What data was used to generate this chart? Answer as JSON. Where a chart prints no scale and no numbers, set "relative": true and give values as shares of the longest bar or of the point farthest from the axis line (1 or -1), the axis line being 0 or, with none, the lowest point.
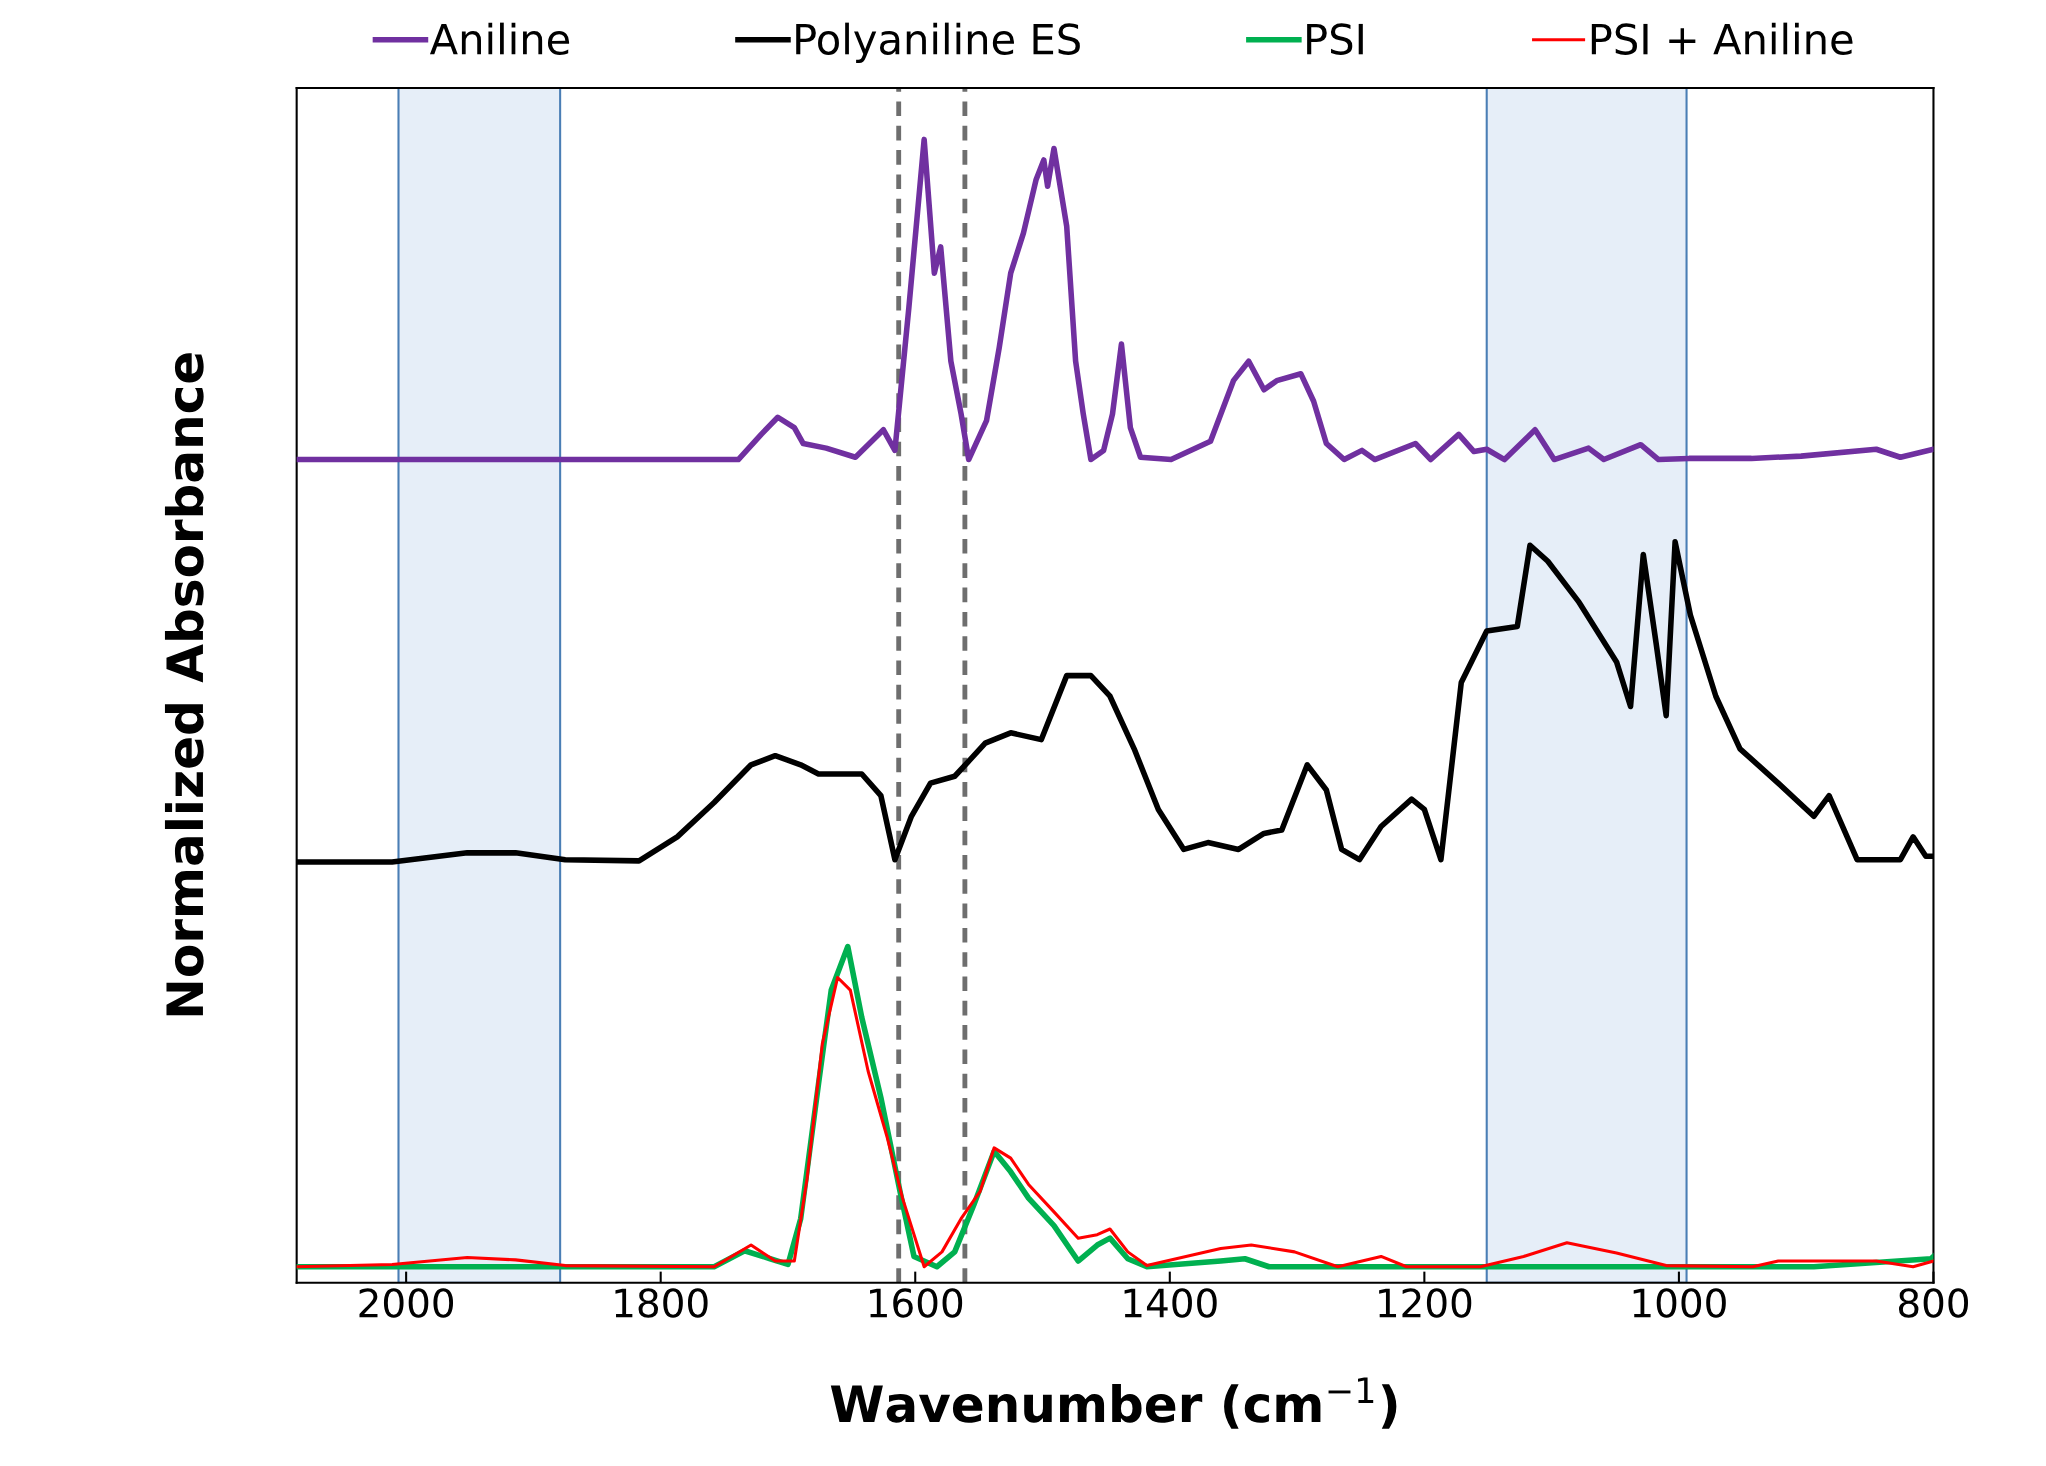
{
  "chart_data": {
    "type": "line",
    "relative": true,
    "xlabel": "Wavenumber (cm$^{−1}$)",
    "ylabel": "Normalized Absorbance",
    "xlim": [
      2086,
      800
    ],
    "xticks": [
      2000,
      1800,
      1600,
      1400,
      1200,
      1000,
      800
    ],
    "tick_labels": "x",
    "grid": false,
    "legend": "top",
    "line_style": "solid",
    "marker": "none",
    "bands": [
      {
        "axis": "x",
        "from": 2006,
        "to": 1879,
        "color": "#e6eef8"
      },
      {
        "axis": "x",
        "from": 1151,
        "to": 994,
        "color": "#e6eef8"
      }
    ],
    "ref_lines": [
      {
        "axis": "x",
        "value": 1613,
        "color": "#6e6e6e",
        "line_style": "dashed"
      },
      {
        "axis": "x",
        "value": 1561,
        "color": "#6e6e6e",
        "line_style": "dashed"
      }
    ],
    "series": [
      {
        "name": "Aniline",
        "color": "#7030a0",
        "x": [
          2086,
          1739,
          1721,
          1708,
          1695,
          1688,
          1670,
          1647,
          1625,
          1616,
          1605,
          1593,
          1585,
          1580,
          1572,
          1564,
          1558,
          1544,
          1534,
          1525,
          1515,
          1505,
          1499,
          1496,
          1491,
          1481,
          1474,
          1468,
          1462,
          1452,
          1445,
          1438,
          1431,
          1423,
          1399,
          1368,
          1350,
          1338,
          1326,
          1316,
          1297,
          1287,
          1277,
          1263,
          1249,
          1239,
          1207,
          1195,
          1173,
          1161,
          1151,
          1137,
          1113,
          1098,
          1071,
          1059,
          1030,
          1016,
          992,
          943,
          904,
          845,
          826,
          800
        ],
        "values": [
          0.72,
          0.72,
          0.742,
          0.757,
          0.748,
          0.734,
          0.73,
          0.722,
          0.746,
          0.728,
          0.853,
          1.0,
          0.883,
          0.906,
          0.806,
          0.76,
          0.72,
          0.754,
          0.818,
          0.883,
          0.918,
          0.965,
          0.982,
          0.959,
          0.992,
          0.924,
          0.806,
          0.76,
          0.72,
          0.728,
          0.76,
          0.821,
          0.748,
          0.722,
          0.72,
          0.736,
          0.789,
          0.806,
          0.781,
          0.789,
          0.795,
          0.771,
          0.734,
          0.72,
          0.728,
          0.72,
          0.734,
          0.72,
          0.742,
          0.727,
          0.729,
          0.72,
          0.746,
          0.72,
          0.73,
          0.72,
          0.733,
          0.72,
          0.721,
          0.721,
          0.723,
          0.729,
          0.722,
          0.729
        ]
      },
      {
        "name": "Polyaniline ES",
        "color": "#000000",
        "x": [
          2086,
          2011,
          1952,
          1914,
          1875,
          1817,
          1787,
          1758,
          1729,
          1710,
          1690,
          1676,
          1661,
          1642,
          1627,
          1616,
          1603,
          1588,
          1569,
          1559,
          1545,
          1525,
          1501,
          1481,
          1462,
          1447,
          1428,
          1409,
          1389,
          1370,
          1346,
          1326,
          1312,
          1292,
          1277,
          1265,
          1251,
          1234,
          1210,
          1200,
          1187,
          1171,
          1151,
          1127,
          1117,
          1103,
          1079,
          1049,
          1038,
          1028,
          1018,
          1010,
          1003,
          991,
          971,
          952,
          922,
          894,
          882,
          860,
          826,
          816,
          806,
          800
        ],
        "values": [
          0.368,
          0.368,
          0.376,
          0.376,
          0.37,
          0.369,
          0.39,
          0.42,
          0.453,
          0.461,
          0.453,
          0.445,
          0.445,
          0.445,
          0.426,
          0.37,
          0.408,
          0.437,
          0.443,
          0.455,
          0.472,
          0.481,
          0.475,
          0.531,
          0.531,
          0.513,
          0.467,
          0.414,
          0.379,
          0.385,
          0.379,
          0.393,
          0.396,
          0.453,
          0.431,
          0.379,
          0.37,
          0.399,
          0.423,
          0.414,
          0.37,
          0.525,
          0.57,
          0.574,
          0.645,
          0.631,
          0.596,
          0.543,
          0.504,
          0.637,
          0.56,
          0.496,
          0.648,
          0.584,
          0.513,
          0.467,
          0.437,
          0.408,
          0.426,
          0.37,
          0.37,
          0.39,
          0.373,
          0.373
        ]
      },
      {
        "name": "PSI",
        "color": "#00b050",
        "x": [
          2086,
          1758,
          1734,
          1714,
          1700,
          1690,
          1676,
          1666,
          1653,
          1642,
          1627,
          1612,
          1601,
          1583,
          1569,
          1554,
          1538,
          1525,
          1511,
          1491,
          1472,
          1457,
          1447,
          1433,
          1418,
          1360,
          1341,
          1322,
          1234,
          894,
          802,
          800
        ],
        "values": [
          0.014,
          0.014,
          0.028,
          0.021,
          0.016,
          0.056,
          0.174,
          0.256,
          0.294,
          0.232,
          0.162,
          0.08,
          0.023,
          0.014,
          0.027,
          0.068,
          0.115,
          0.097,
          0.074,
          0.05,
          0.019,
          0.033,
          0.039,
          0.021,
          0.014,
          0.019,
          0.021,
          0.014,
          0.014,
          0.014,
          0.021,
          0.023
        ]
      },
      {
        "name": "PSI + Aniline",
        "color": "#ff0000",
        "x": [
          2086,
          2011,
          1952,
          1914,
          1875,
          1758,
          1729,
          1710,
          1695,
          1685,
          1673,
          1661,
          1651,
          1637,
          1622,
          1610,
          1593,
          1579,
          1564,
          1549,
          1538,
          1525,
          1511,
          1491,
          1472,
          1457,
          1447,
          1433,
          1418,
          1360,
          1336,
          1302,
          1268,
          1234,
          1214,
          1156,
          1122,
          1088,
          1049,
          1010,
          942,
          922,
          845,
          816,
          800
        ],
        "values": [
          0.014,
          0.016,
          0.022,
          0.02,
          0.015,
          0.014,
          0.033,
          0.019,
          0.019,
          0.091,
          0.209,
          0.267,
          0.256,
          0.185,
          0.127,
          0.074,
          0.014,
          0.027,
          0.056,
          0.08,
          0.118,
          0.109,
          0.086,
          0.062,
          0.039,
          0.042,
          0.047,
          0.027,
          0.015,
          0.03,
          0.033,
          0.027,
          0.014,
          0.023,
          0.014,
          0.014,
          0.023,
          0.035,
          0.026,
          0.015,
          0.014,
          0.019,
          0.019,
          0.014,
          0.019
        ]
      }
    ]
  }
}
